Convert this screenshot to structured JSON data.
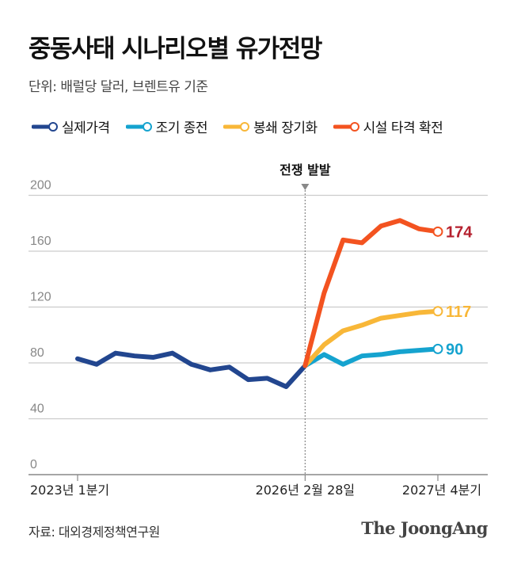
{
  "chart_data": {
    "type": "line",
    "title": "중동사태 시나리오별 유가전망",
    "subtitle": "단위: 배럴당 달러, 브렌트유 기준",
    "ylim": [
      0,
      200
    ],
    "yticks": [
      0,
      40,
      80,
      120,
      160,
      200
    ],
    "xtick_labels": [
      "2023년 1분기",
      "2026년 2월 28일",
      "2027년 4분기"
    ],
    "annotation": "전쟁 발발",
    "grid": true,
    "legend_position": "top",
    "series": [
      {
        "name": "실제가격",
        "color": "#22468f",
        "x": [
          0,
          1,
          2,
          3,
          4,
          5,
          6,
          7,
          8,
          9,
          10,
          11,
          12
        ],
        "values": [
          83,
          79,
          87,
          85,
          84,
          87,
          79,
          75,
          77,
          68,
          69,
          63,
          78
        ]
      },
      {
        "name": "조기 종전",
        "color": "#15a3cf",
        "x": [
          12,
          13,
          14,
          15,
          16,
          17,
          18,
          19
        ],
        "values": [
          78,
          86,
          79,
          85,
          86,
          88,
          89,
          90
        ],
        "end_label": "90"
      },
      {
        "name": "봉쇄 장기화",
        "color": "#f8b738",
        "x": [
          12,
          13,
          14,
          15,
          16,
          17,
          18,
          19
        ],
        "values": [
          78,
          93,
          103,
          107,
          112,
          114,
          116,
          117
        ],
        "end_label": "117"
      },
      {
        "name": "시설 타격 확전",
        "color": "#f35320",
        "x": [
          12,
          13,
          14,
          15,
          16,
          17,
          18,
          19
        ],
        "values": [
          78,
          130,
          168,
          166,
          178,
          182,
          176,
          174
        ],
        "end_label": "174",
        "end_label_color": "#b5202e"
      }
    ]
  },
  "footer": {
    "source": "자료: 대외경제정책연구원",
    "brand": "The JoongAng"
  }
}
